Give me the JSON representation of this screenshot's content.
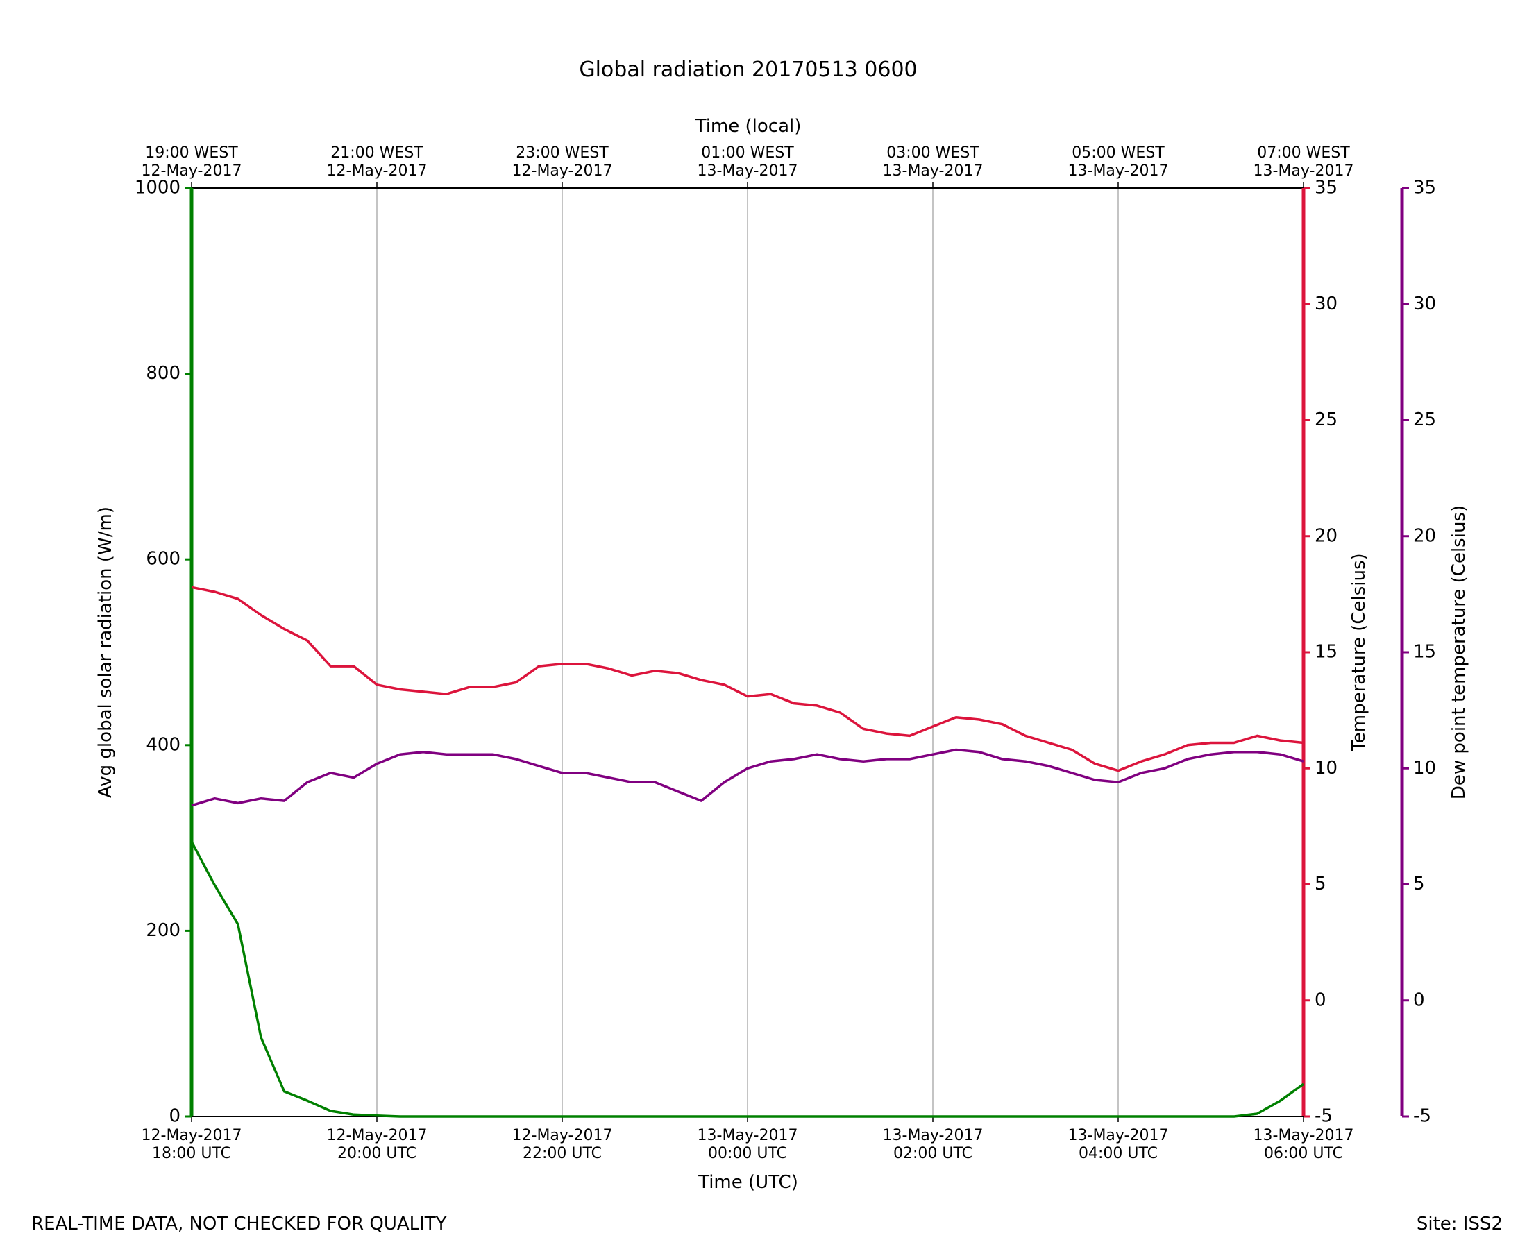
{
  "chart_data": {
    "type": "line",
    "title": "Global radiation 20170513 0600",
    "xlabel": "Time (UTC)",
    "x2label": "Time (local)",
    "ylabel": "Avg global solar radiation (W/m)",
    "y2label": "Temperature (Celsius)",
    "y3label": "Dew point temperature (Celsius)",
    "footer_left": "REAL-TIME DATA, NOT CHECKED FOR QUALITY",
    "footer_right": "Site: ISS2",
    "grid": "x",
    "x": [
      "2017-05-12T18:00",
      "2017-05-12T18:15",
      "2017-05-12T18:30",
      "2017-05-12T18:45",
      "2017-05-12T19:00",
      "2017-05-12T19:15",
      "2017-05-12T19:30",
      "2017-05-12T19:45",
      "2017-05-12T20:00",
      "2017-05-12T20:15",
      "2017-05-12T20:30",
      "2017-05-12T20:45",
      "2017-05-12T21:00",
      "2017-05-12T21:15",
      "2017-05-12T21:30",
      "2017-05-12T21:45",
      "2017-05-12T22:00",
      "2017-05-12T22:15",
      "2017-05-12T22:30",
      "2017-05-12T22:45",
      "2017-05-12T23:00",
      "2017-05-12T23:15",
      "2017-05-12T23:30",
      "2017-05-12T23:45",
      "2017-05-13T00:00",
      "2017-05-13T00:15",
      "2017-05-13T00:30",
      "2017-05-13T00:45",
      "2017-05-13T01:00",
      "2017-05-13T01:15",
      "2017-05-13T01:30",
      "2017-05-13T01:45",
      "2017-05-13T02:00",
      "2017-05-13T02:15",
      "2017-05-13T02:30",
      "2017-05-13T02:45",
      "2017-05-13T03:00",
      "2017-05-13T03:15",
      "2017-05-13T03:30",
      "2017-05-13T03:45",
      "2017-05-13T04:00",
      "2017-05-13T04:15",
      "2017-05-13T04:30",
      "2017-05-13T04:45",
      "2017-05-13T05:00",
      "2017-05-13T05:15",
      "2017-05-13T05:30",
      "2017-05-13T05:45",
      "2017-05-13T06:00"
    ],
    "xlim": [
      "2017-05-12T18:00",
      "2017-05-13T06:00"
    ],
    "xticks": [
      {
        "value": "2017-05-12T18:00",
        "label": [
          "12-May-2017",
          "18:00 UTC"
        ]
      },
      {
        "value": "2017-05-12T20:00",
        "label": [
          "12-May-2017",
          "20:00 UTC"
        ]
      },
      {
        "value": "2017-05-12T22:00",
        "label": [
          "12-May-2017",
          "22:00 UTC"
        ]
      },
      {
        "value": "2017-05-13T00:00",
        "label": [
          "13-May-2017",
          "00:00 UTC"
        ]
      },
      {
        "value": "2017-05-13T02:00",
        "label": [
          "13-May-2017",
          "02:00 UTC"
        ]
      },
      {
        "value": "2017-05-13T04:00",
        "label": [
          "13-May-2017",
          "04:00 UTC"
        ]
      },
      {
        "value": "2017-05-13T06:00",
        "label": [
          "13-May-2017",
          "06:00 UTC"
        ]
      }
    ],
    "x2ticks": [
      {
        "value": "2017-05-12T18:00",
        "label": [
          "19:00 WEST",
          "12-May-2017"
        ]
      },
      {
        "value": "2017-05-12T20:00",
        "label": [
          "21:00 WEST",
          "12-May-2017"
        ]
      },
      {
        "value": "2017-05-12T22:00",
        "label": [
          "23:00 WEST",
          "12-May-2017"
        ]
      },
      {
        "value": "2017-05-13T00:00",
        "label": [
          "01:00 WEST",
          "13-May-2017"
        ]
      },
      {
        "value": "2017-05-13T02:00",
        "label": [
          "03:00 WEST",
          "13-May-2017"
        ]
      },
      {
        "value": "2017-05-13T04:00",
        "label": [
          "05:00 WEST",
          "13-May-2017"
        ]
      },
      {
        "value": "2017-05-13T06:00",
        "label": [
          "07:00 WEST",
          "13-May-2017"
        ]
      }
    ],
    "ylim": [
      0,
      1000
    ],
    "yticks": [
      0,
      200,
      400,
      600,
      800,
      1000
    ],
    "y2lim": [
      -5,
      35
    ],
    "y2ticks": [
      -5,
      0,
      5,
      10,
      15,
      20,
      25,
      30,
      35
    ],
    "y3lim": [
      -5,
      35
    ],
    "y3ticks": [
      -5,
      0,
      5,
      10,
      15,
      20,
      25,
      30,
      35
    ],
    "series": [
      {
        "color": "#008000",
        "axis": "y",
        "values": [
          296,
          249,
          207,
          85,
          27,
          17,
          6,
          2,
          1,
          0,
          0,
          0,
          0,
          0,
          0,
          0,
          0,
          0,
          0,
          0,
          0,
          0,
          0,
          0,
          0,
          0,
          0,
          0,
          0,
          0,
          0,
          0,
          0,
          0,
          0,
          0,
          0,
          0,
          0,
          0,
          0,
          0,
          0,
          0,
          0,
          0,
          3,
          17,
          35
        ]
      },
      {
        "color": "#dc143c",
        "axis": "y2",
        "values": [
          17.8,
          17.6,
          17.3,
          16.6,
          16.0,
          15.5,
          14.4,
          14.4,
          13.6,
          13.4,
          13.3,
          13.2,
          13.5,
          13.5,
          13.7,
          14.4,
          14.5,
          14.5,
          14.3,
          14.0,
          14.2,
          14.1,
          13.8,
          13.6,
          13.1,
          13.2,
          12.8,
          12.7,
          12.4,
          11.7,
          11.5,
          11.4,
          11.8,
          12.2,
          12.1,
          11.9,
          11.4,
          11.1,
          10.8,
          10.2,
          9.9,
          10.3,
          10.6,
          11.0,
          11.1,
          11.1,
          11.4,
          11.2,
          11.1
        ]
      },
      {
        "color": "#800080",
        "axis": "y3",
        "values": [
          8.4,
          8.7,
          8.5,
          8.7,
          8.6,
          9.4,
          9.8,
          9.6,
          10.2,
          10.6,
          10.7,
          10.6,
          10.6,
          10.6,
          10.4,
          10.1,
          9.8,
          9.8,
          9.6,
          9.4,
          9.4,
          9.0,
          8.6,
          9.4,
          10.0,
          10.3,
          10.4,
          10.6,
          10.4,
          10.3,
          10.4,
          10.4,
          10.6,
          10.8,
          10.7,
          10.4,
          10.3,
          10.1,
          9.8,
          9.5,
          9.4,
          9.8,
          10.0,
          10.4,
          10.6,
          10.7,
          10.7,
          10.6,
          10.3
        ]
      }
    ]
  }
}
